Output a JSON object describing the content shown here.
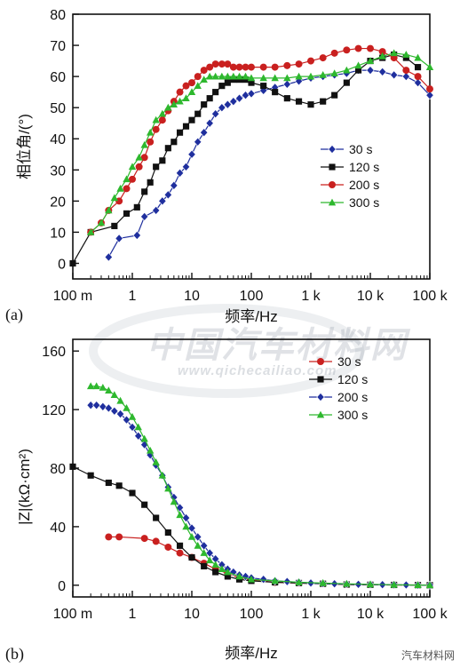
{
  "watermark": {
    "main": "中国汽车材料网",
    "url": "www.qichecailiao.com",
    "corner": "汽车材料网"
  },
  "chart_data": [
    {
      "panel": "(a)",
      "type": "line",
      "x_scale": "log",
      "xlabel": "频率/Hz",
      "ylabel": "相位角/(°)",
      "xlim": [
        0.1,
        100000
      ],
      "ylim": [
        -5,
        80
      ],
      "x_ticks": [
        0.1,
        1,
        10,
        100,
        1000,
        10000,
        100000
      ],
      "x_tick_labels": [
        "100 m",
        "1",
        "10",
        "100",
        "1 k",
        "10 k",
        "100 k"
      ],
      "y_ticks": [
        0,
        10,
        20,
        30,
        40,
        50,
        60,
        70,
        80
      ],
      "y_tick_labels": [
        "0",
        "10",
        "20",
        "30",
        "40",
        "50",
        "60",
        "70",
        "80"
      ],
      "legend_position": "center-right",
      "series": [
        {
          "name": "30 s",
          "color": "#1f2f9e",
          "marker": "diamond",
          "x": [
            0.4,
            0.6,
            1.2,
            1.6,
            2.5,
            3.2,
            4,
            5,
            6.3,
            8,
            10,
            12.6,
            16,
            20,
            25,
            32,
            40,
            50,
            63,
            80,
            100,
            160,
            250,
            400,
            630,
            1000,
            1600,
            2500,
            4000,
            6300,
            10000,
            16000,
            25000,
            40000,
            63000,
            100000
          ],
          "y": [
            2,
            8,
            9,
            15,
            17,
            20,
            22,
            25,
            29,
            31,
            35,
            39,
            42,
            45,
            48,
            50,
            51,
            52,
            53,
            54,
            54.5,
            55.5,
            56.5,
            57.5,
            58.5,
            59.5,
            60,
            60.5,
            61,
            62,
            62,
            61.5,
            60.5,
            60,
            58,
            54
          ]
        },
        {
          "name": "120 s",
          "color": "#111111",
          "marker": "square",
          "x": [
            0.1,
            0.2,
            0.5,
            0.8,
            1.2,
            1.6,
            2,
            2.5,
            3.2,
            4,
            5,
            6.3,
            8,
            10,
            12.6,
            16,
            20,
            25,
            32,
            40,
            50,
            63,
            80,
            100,
            160,
            250,
            400,
            630,
            1000,
            1600,
            2500,
            4000,
            6300,
            10000,
            16000,
            25000,
            40000,
            63000
          ],
          "y": [
            0,
            10,
            12,
            16,
            18,
            23,
            26,
            31,
            33,
            37,
            39,
            42,
            44,
            46,
            48,
            51,
            53,
            55,
            57,
            58,
            59,
            59,
            59,
            58,
            57,
            55,
            53,
            52,
            51,
            52,
            54,
            58,
            62,
            65,
            66,
            67,
            66,
            63
          ]
        },
        {
          "name": "200 s",
          "color": "#c9201f",
          "marker": "circle",
          "x": [
            0.2,
            0.3,
            0.4,
            0.6,
            0.8,
            1,
            1.3,
            1.6,
            2,
            2.5,
            3.2,
            4,
            5,
            6.3,
            8,
            10,
            12.6,
            16,
            20,
            25,
            32,
            40,
            50,
            63,
            80,
            100,
            160,
            250,
            400,
            630,
            1000,
            1600,
            2500,
            4000,
            6300,
            10000,
            16000,
            25000,
            40000,
            63000,
            100000
          ],
          "y": [
            10,
            13,
            17,
            20,
            24,
            27,
            31,
            34,
            39,
            43,
            46,
            49,
            52,
            55,
            57,
            58,
            60,
            62,
            63,
            64,
            64,
            64,
            63,
            63,
            63,
            63,
            63,
            63,
            63.5,
            64,
            65,
            66,
            67.5,
            68.5,
            69,
            69,
            68,
            66,
            62,
            60,
            56
          ]
        },
        {
          "name": "300 s",
          "color": "#2eb82e",
          "marker": "triangle",
          "x": [
            0.2,
            0.3,
            0.4,
            0.5,
            0.63,
            0.8,
            1,
            1.3,
            1.6,
            2,
            2.5,
            3.2,
            4,
            5,
            6.3,
            8,
            10,
            12.6,
            16,
            20,
            25,
            32,
            40,
            50,
            63,
            80,
            100,
            160,
            250,
            400,
            630,
            1000,
            1600,
            2500,
            4000,
            6300,
            10000,
            16000,
            25000,
            40000,
            63000,
            100000
          ],
          "y": [
            10,
            13,
            17,
            21,
            24,
            27,
            31,
            34,
            38,
            42,
            46,
            48,
            50,
            51,
            52,
            53,
            55,
            57,
            59,
            60,
            60,
            60,
            60,
            60,
            60,
            60,
            59.5,
            59.5,
            59.5,
            59.5,
            60,
            60,
            60.5,
            61,
            62,
            63.5,
            65,
            66.5,
            67.5,
            67,
            66,
            63
          ]
        }
      ]
    },
    {
      "panel": "(b)",
      "type": "line",
      "x_scale": "log",
      "xlabel": "频率/Hz",
      "ylabel": "|Z|(kΩ·cm²)",
      "xlim": [
        0.1,
        100000
      ],
      "ylim": [
        -8,
        168
      ],
      "x_ticks": [
        0.1,
        1,
        10,
        100,
        1000,
        10000,
        100000
      ],
      "x_tick_labels": [
        "100 m",
        "1",
        "10",
        "100",
        "1 k",
        "10 k",
        "100 k"
      ],
      "y_ticks": [
        0,
        40,
        80,
        120,
        160
      ],
      "y_tick_labels": [
        "0",
        "40",
        "80",
        "120",
        "160"
      ],
      "legend_position": "top-right",
      "series": [
        {
          "name": "30 s",
          "color": "#c9201f",
          "marker": "circle",
          "x": [
            0.4,
            0.6,
            1.6,
            2.5,
            4,
            6.3,
            10,
            16,
            25,
            40,
            63,
            100,
            250,
            630,
            1600,
            4000,
            10000,
            25000,
            63000,
            100000
          ],
          "y": [
            33,
            33,
            32,
            30,
            26,
            22,
            19,
            15,
            11,
            8,
            5,
            3.5,
            2,
            1.5,
            1,
            0.5,
            0.3,
            0.2,
            0.1,
            0
          ]
        },
        {
          "name": "120 s",
          "color": "#111111",
          "marker": "square",
          "x": [
            0.1,
            0.2,
            0.4,
            0.6,
            1,
            1.6,
            2.5,
            4,
            6.3,
            10,
            16,
            25,
            40,
            63,
            100,
            250,
            630,
            1600,
            4000,
            10000,
            25000,
            63000,
            100000
          ],
          "y": [
            81,
            75,
            70,
            68,
            63,
            55,
            46,
            36,
            27,
            19,
            13,
            9,
            6,
            4,
            3,
            2,
            1.5,
            1,
            0.5,
            0.3,
            0.2,
            0.1,
            0
          ]
        },
        {
          "name": "200 s",
          "color": "#1f2f9e",
          "marker": "diamond",
          "x": [
            0.2,
            0.25,
            0.32,
            0.4,
            0.5,
            0.63,
            0.8,
            1,
            1.26,
            1.6,
            2,
            2.5,
            3.2,
            4,
            5,
            6.3,
            8,
            10,
            12.6,
            16,
            20,
            25,
            32,
            40,
            50,
            63,
            80,
            100,
            160,
            250,
            400,
            630,
            1000,
            1600,
            2500,
            4000,
            6300,
            10000,
            16000,
            25000,
            40000,
            63000,
            100000
          ],
          "y": [
            123,
            123,
            122,
            121,
            119,
            117,
            113,
            108,
            102,
            96,
            89,
            82,
            75,
            67,
            60,
            53,
            46,
            39,
            33,
            27,
            22,
            18,
            14,
            11,
            9,
            7,
            6,
            5,
            4,
            3,
            2.5,
            2,
            1.5,
            1.2,
            1,
            0.8,
            0.6,
            0.5,
            0.4,
            0.3,
            0.2,
            0.1,
            0
          ]
        },
        {
          "name": "300 s",
          "color": "#2eb82e",
          "marker": "triangle",
          "x": [
            0.2,
            0.25,
            0.32,
            0.4,
            0.5,
            0.63,
            0.8,
            1,
            1.26,
            1.6,
            2,
            2.5,
            3.2,
            4,
            5,
            6.3,
            8,
            10,
            12.6,
            16,
            20,
            25,
            32,
            40,
            63,
            100,
            250,
            630,
            1600,
            4000,
            10000,
            25000,
            63000,
            100000
          ],
          "y": [
            136,
            136,
            135,
            133,
            130,
            126,
            121,
            115,
            108,
            100,
            92,
            84,
            75,
            66,
            57,
            48,
            40,
            33,
            27,
            22,
            17,
            14,
            11,
            9,
            6,
            4,
            3,
            2,
            1.5,
            1,
            0.6,
            0.3,
            0.1,
            0
          ]
        }
      ]
    }
  ]
}
